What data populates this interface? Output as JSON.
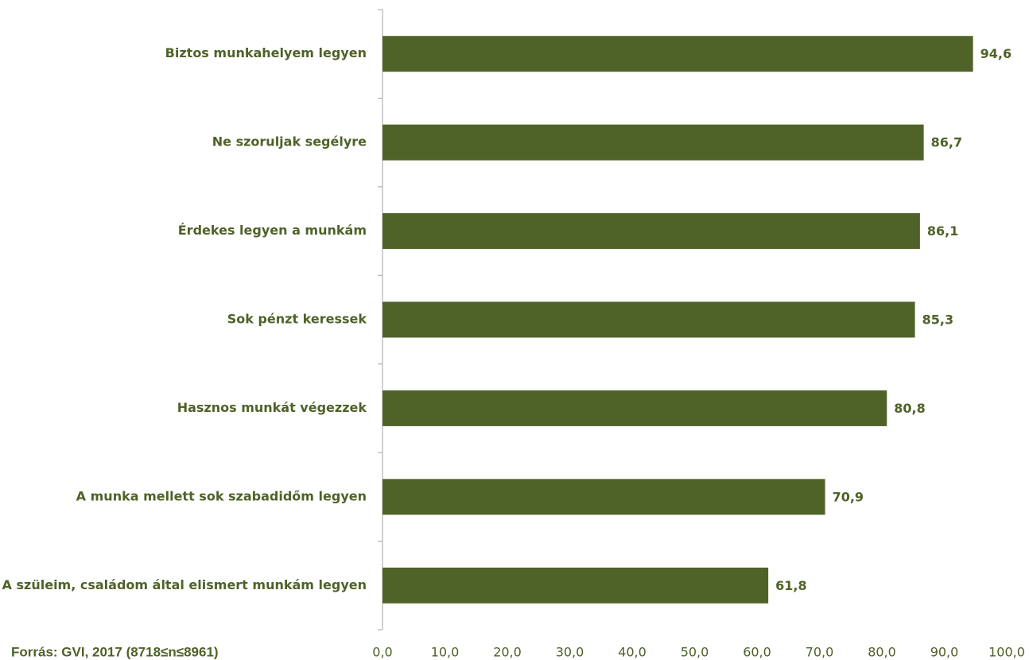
{
  "chart_data": {
    "type": "hbar",
    "categories": [
      "Biztos munkahelyem legyen",
      "Ne szoruljak segélyre",
      "Érdekes legyen a munkám",
      "Sok pénzt keressek",
      "Hasznos munkát végezzek",
      "A munka mellett sok szabadidőm legyen",
      "A szüleim, családom által elismert munkám legyen"
    ],
    "values": [
      94.6,
      86.7,
      86.1,
      85.3,
      80.8,
      70.9,
      61.8
    ],
    "value_labels": [
      "94,6",
      "86,7",
      "86,1",
      "85,3",
      "80,8",
      "70,9",
      "61,8"
    ],
    "color": "#4f6228",
    "xlim": [
      0,
      100
    ],
    "xticks": [
      {
        "value": 0,
        "label": "0,0"
      },
      {
        "value": 10,
        "label": "10,0"
      },
      {
        "value": 20,
        "label": "20,0"
      },
      {
        "value": 30,
        "label": "30,0"
      },
      {
        "value": 40,
        "label": "40,0"
      },
      {
        "value": 50,
        "label": "50,0"
      },
      {
        "value": 60,
        "label": "60,0"
      },
      {
        "value": 70,
        "label": "70,0"
      },
      {
        "value": 80,
        "label": "80,0"
      },
      {
        "value": 90,
        "label": "90,0"
      },
      {
        "value": 100,
        "label": "100,0"
      }
    ],
    "grid": false,
    "source": "Forrás: GVI, 2017 (8718≤n≤8961)"
  }
}
